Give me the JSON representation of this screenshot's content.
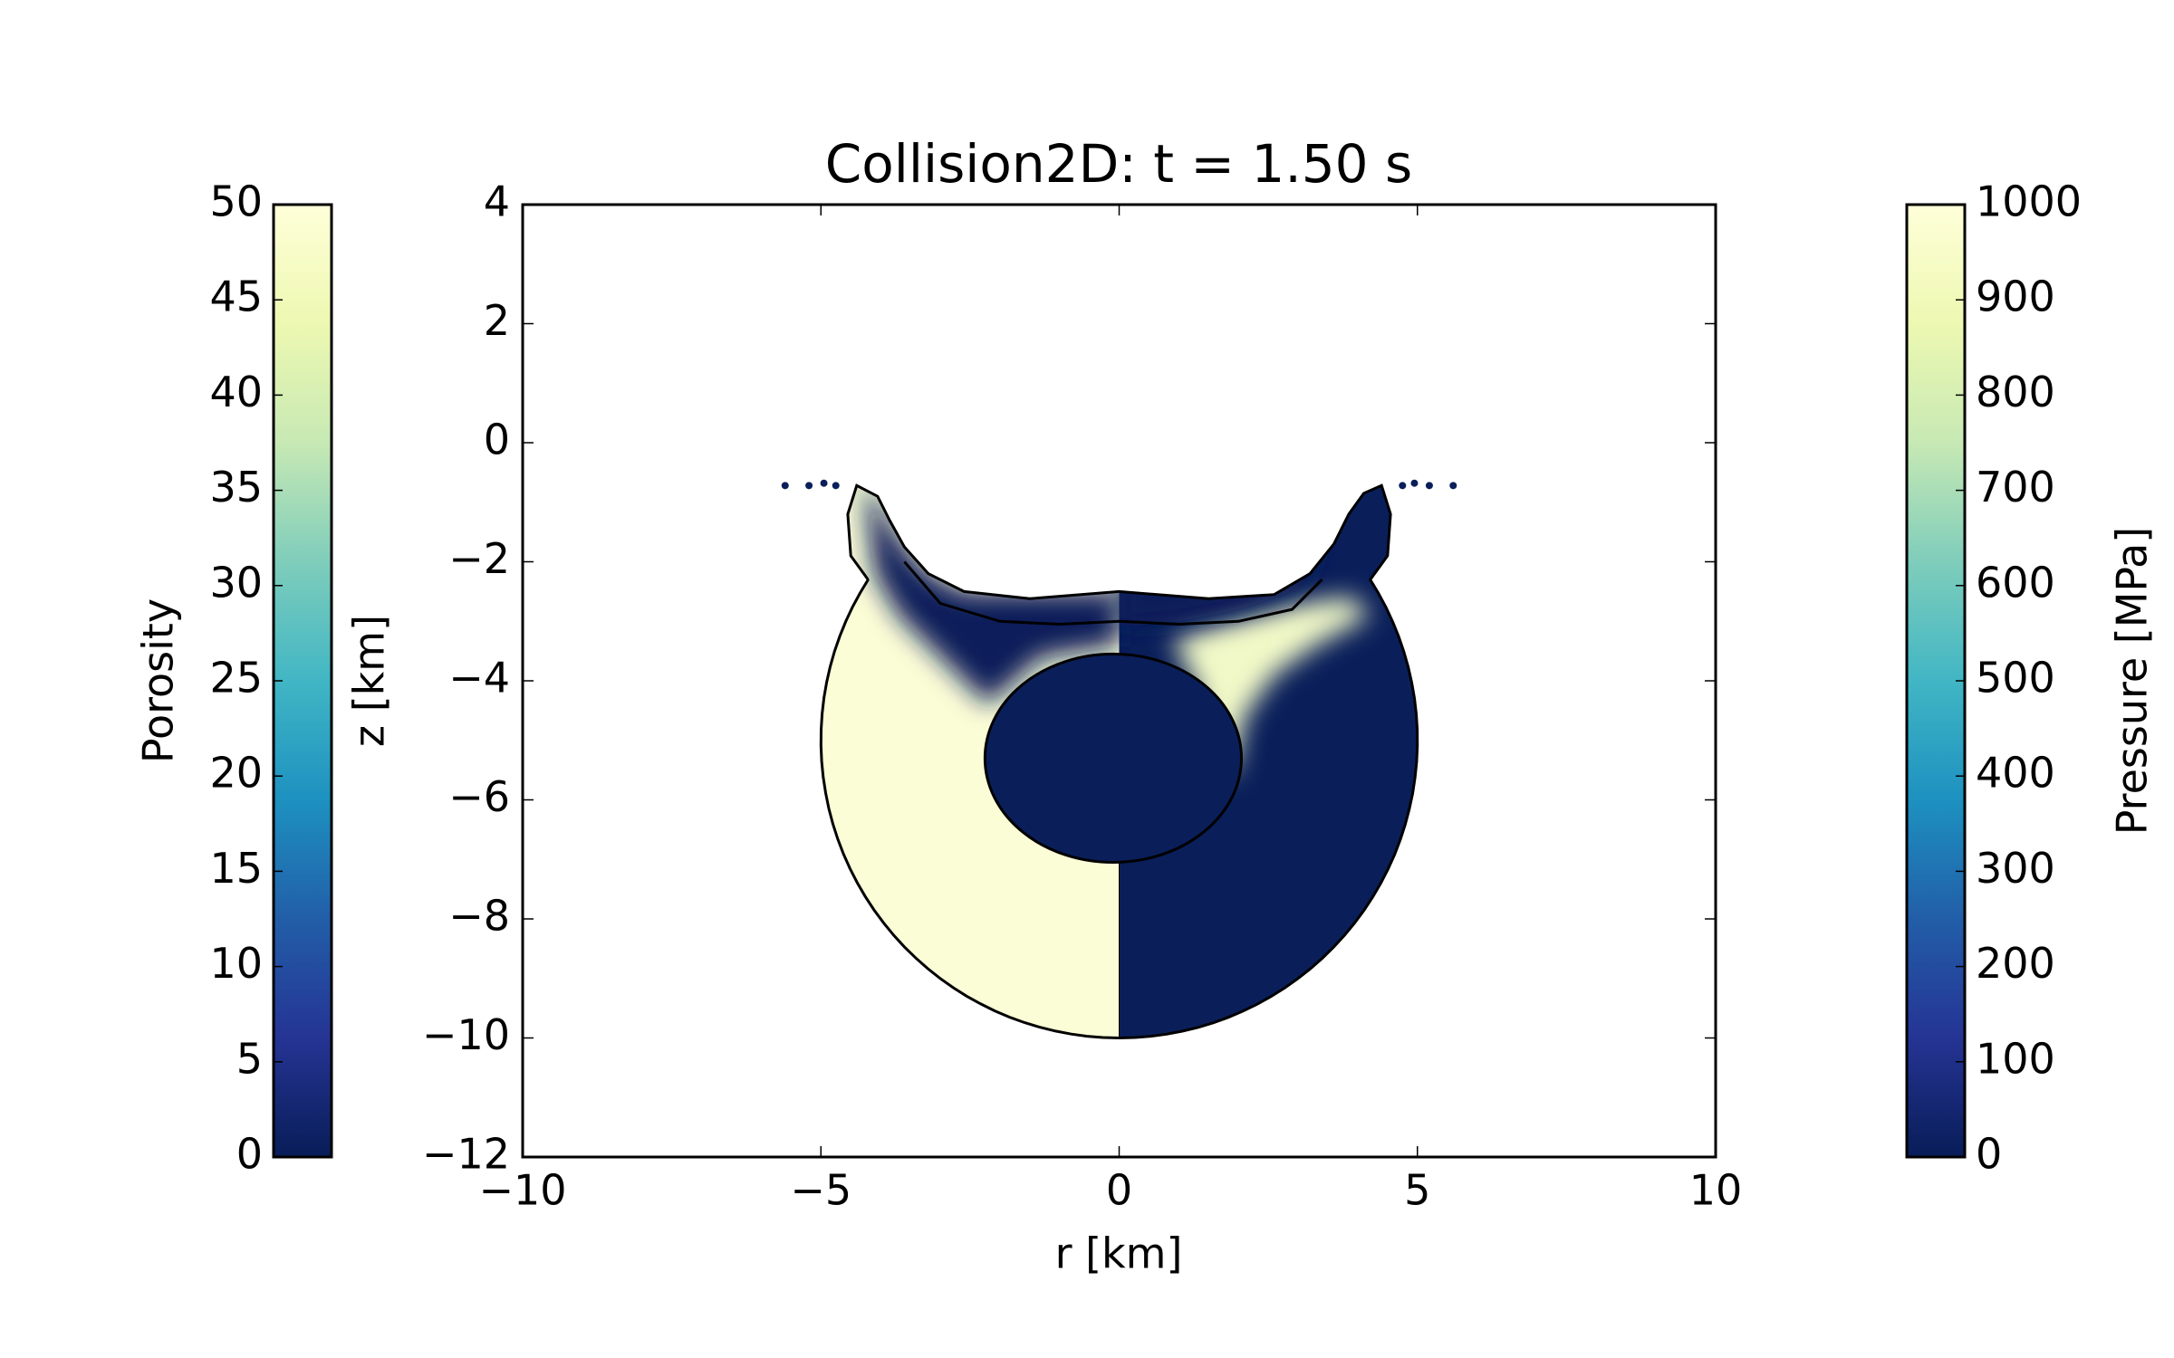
{
  "chart_data": {
    "type": "image",
    "title": "Collision2D: t =  1.50 s",
    "xlabel": "r [km]",
    "ylabel": "z [km]",
    "xlim": [
      -10,
      10
    ],
    "ylim": [
      -12,
      4
    ],
    "xticks": [
      {
        "value": -10,
        "label": "−10"
      },
      {
        "value": -5,
        "label": "−5"
      },
      0,
      5,
      10
    ],
    "yticks": [
      {
        "value": -12,
        "label": "−12"
      },
      {
        "value": -10,
        "label": "−10"
      },
      {
        "value": -8,
        "label": "−8"
      },
      {
        "value": -6,
        "label": "−6"
      },
      {
        "value": -4,
        "label": "−4"
      },
      {
        "value": -2,
        "label": "−2"
      },
      0,
      2,
      4
    ],
    "colorbars": [
      {
        "label": "Porosity",
        "lim": [
          0,
          50
        ],
        "ticks": [
          0,
          5,
          10,
          15,
          20,
          25,
          30,
          35,
          40,
          45,
          50
        ]
      },
      {
        "label": "Pressure [MPa]",
        "lim": [
          0,
          1000
        ],
        "ticks": [
          0,
          100,
          200,
          300,
          400,
          500,
          600,
          700,
          800,
          900,
          1000
        ]
      }
    ]
  }
}
